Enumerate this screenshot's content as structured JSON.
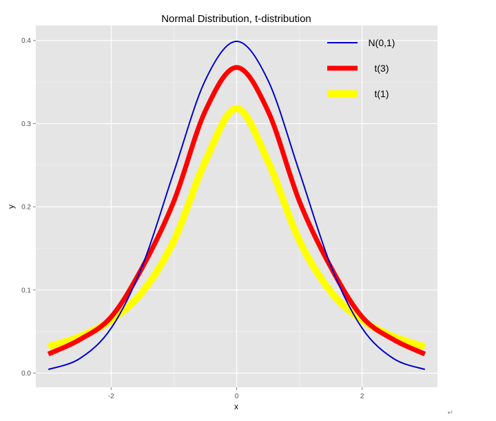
{
  "chart_data": {
    "type": "line",
    "title": "Normal Distribution, t-distribution",
    "xlabel": "x",
    "ylabel": "y",
    "xlim": [
      -3.2,
      3.2
    ],
    "ylim": [
      -0.017,
      0.418
    ],
    "x_ticks": [
      -2,
      0,
      2
    ],
    "x_tick_labels": [
      "-2",
      "0",
      "2"
    ],
    "y_ticks": [
      0.0,
      0.1,
      0.2,
      0.3,
      0.4
    ],
    "y_tick_labels": [
      "0.0",
      "0.1",
      "0.2",
      "0.3",
      "0.4"
    ],
    "grid": true,
    "legend_position": "top-right",
    "x": [
      -3.0,
      -2.5,
      -2.0,
      -1.5,
      -1.0,
      -0.5,
      0.0,
      0.5,
      1.0,
      1.5,
      2.0,
      2.5,
      3.0
    ],
    "series": [
      {
        "name": "N(0,1)",
        "color": "#0000cc",
        "values": [
          0.0044,
          0.0175,
          0.054,
          0.1295,
          0.242,
          0.3521,
          0.3989,
          0.3521,
          0.242,
          0.1295,
          0.054,
          0.0175,
          0.0044
        ]
      },
      {
        "name": "t(3)",
        "color": "#ff0000",
        "values": [
          0.0229,
          0.0403,
          0.0675,
          0.1274,
          0.2067,
          0.3151,
          0.3676,
          0.3151,
          0.2067,
          0.1274,
          0.0675,
          0.0403,
          0.0229
        ]
      },
      {
        "name": "t(1)",
        "color": "#ffff00",
        "values": [
          0.0318,
          0.0439,
          0.0637,
          0.0979,
          0.1592,
          0.2546,
          0.3183,
          0.2546,
          0.1592,
          0.0979,
          0.0637,
          0.0439,
          0.0318
        ]
      }
    ]
  },
  "colors": {
    "panel_background": "#e5e5e5",
    "grid_major": "#ffffff",
    "grid_minor": "#f2f2f2"
  },
  "return_mark": "↵"
}
